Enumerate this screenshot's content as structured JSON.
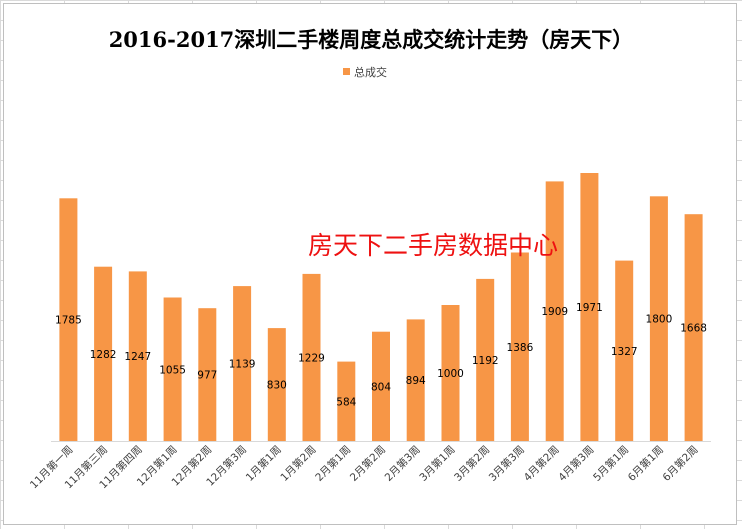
{
  "chart_data": {
    "type": "bar",
    "title": "2016-2017深圳二手楼周度总成交统计走势（房天下）",
    "legend_position": "top-center",
    "grid": false,
    "ylim": [
      0,
      2200
    ],
    "categories": [
      "11月第一周",
      "11月第三周",
      "11月第四周",
      "12月第1周",
      "12月第2周",
      "12月第3周",
      "1月第1周",
      "1月第2周",
      "2月第1周",
      "2月第2周",
      "2月第3周",
      "3月第1周",
      "3月第2周",
      "3月第3周",
      "4月第2周",
      "4月第3周",
      "5月第1周",
      "6月第1周",
      "6月第2周"
    ],
    "series": [
      {
        "name": "总成交",
        "color": "#f79646",
        "values": [
          1785,
          1282,
          1247,
          1055,
          977,
          1139,
          830,
          1229,
          584,
          804,
          894,
          1000,
          1192,
          1386,
          1909,
          1971,
          1327,
          1800,
          1668
        ]
      }
    ],
    "annotation": "房天下二手房数据中心"
  }
}
